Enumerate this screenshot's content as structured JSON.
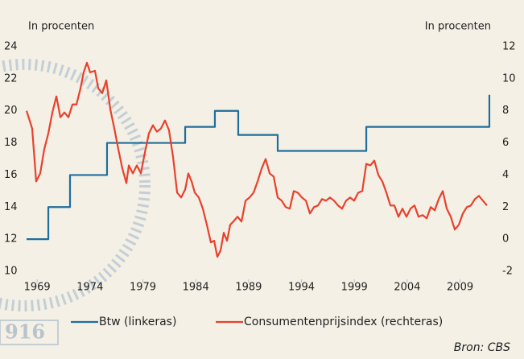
{
  "chart_data": {
    "type": "line",
    "y_label": "In procenten",
    "y2_label": "In procenten",
    "source": "Bron: CBS",
    "watermark": "916",
    "xlim": [
      1968,
      2012
    ],
    "xticks": [
      1969,
      1974,
      1979,
      1984,
      1989,
      1994,
      1999,
      2004,
      2009
    ],
    "ylim": [
      10,
      24
    ],
    "yticks": [
      10,
      12,
      14,
      16,
      18,
      20,
      22,
      24
    ],
    "y2lim": [
      -2,
      12
    ],
    "y2ticks": [
      -2,
      0,
      2,
      4,
      6,
      8,
      10,
      12
    ],
    "grid": false,
    "legend": "bottom",
    "series": [
      {
        "name": "Btw (linkeras)",
        "color": "#1f6e9c",
        "axis": "y",
        "x": [
          1968,
          1970.06,
          1970.06,
          1972.11,
          1972.11,
          1975.61,
          1975.61,
          1983,
          1983,
          1985.81,
          1985.81,
          1988.02,
          1988.02,
          1991.75,
          1991.75,
          2000.13,
          2000.13,
          2011.77,
          2011.77
        ],
        "values": [
          12,
          12,
          14,
          14,
          16,
          16,
          18,
          18,
          19,
          19,
          20,
          20,
          18.5,
          18.5,
          17.5,
          17.5,
          19,
          19,
          21
        ]
      },
      {
        "name": "Consumentenprijsindex (rechteras)",
        "color": "#e8412c",
        "axis": "y2",
        "x": [
          1968.0,
          1968.53,
          1968.91,
          1969.29,
          1969.67,
          1970.06,
          1970.44,
          1970.82,
          1971.2,
          1971.58,
          1971.96,
          1972.34,
          1972.72,
          1973.1,
          1973.4,
          1973.71,
          1974.01,
          1974.47,
          1974.78,
          1975.16,
          1975.54,
          1975.92,
          1976.3,
          1976.68,
          1977.06,
          1977.44,
          1977.67,
          1978.05,
          1978.43,
          1978.81,
          1979.19,
          1979.57,
          1979.95,
          1980.33,
          1980.71,
          1981.09,
          1981.47,
          1981.86,
          1982.24,
          1982.62,
          1983.0,
          1983.3,
          1983.61,
          1983.91,
          1984.29,
          1984.67,
          1985.05,
          1985.43,
          1985.74,
          1986.04,
          1986.35,
          1986.65,
          1986.96,
          1987.26,
          1987.56,
          1987.95,
          1988.33,
          1988.71,
          1989.09,
          1989.47,
          1989.85,
          1990.23,
          1990.61,
          1990.99,
          1991.37,
          1991.75,
          1992.13,
          1992.51,
          1992.89,
          1993.27,
          1993.65,
          1994.04,
          1994.42,
          1994.8,
          1995.18,
          1995.56,
          1995.94,
          1996.32,
          1996.7,
          1997.08,
          1997.46,
          1997.84,
          1998.22,
          1998.6,
          1998.98,
          1999.37,
          1999.75,
          2000.13,
          2000.51,
          2000.89,
          2001.27,
          2001.65,
          2002.03,
          2002.41,
          2002.79,
          2003.17,
          2003.55,
          2003.93,
          2004.31,
          2004.69,
          2005.07,
          2005.46,
          2005.84,
          2006.22,
          2006.6,
          2006.98,
          2007.36,
          2007.74,
          2008.12,
          2008.5,
          2008.88,
          2009.26,
          2009.64,
          2010.02,
          2010.4,
          2010.78,
          2011.16,
          2011.54
        ],
        "values": [
          8.0,
          6.9,
          3.6,
          4.1,
          5.6,
          6.6,
          7.9,
          8.9,
          7.6,
          7.9,
          7.6,
          8.4,
          8.4,
          9.4,
          10.4,
          11.0,
          10.4,
          10.5,
          9.4,
          9.1,
          9.9,
          8.1,
          6.9,
          5.6,
          4.4,
          3.5,
          4.6,
          4.1,
          4.6,
          4.1,
          5.4,
          6.6,
          7.1,
          6.7,
          6.9,
          7.4,
          6.8,
          5.1,
          2.9,
          2.6,
          3.1,
          4.1,
          3.6,
          2.9,
          2.6,
          1.9,
          0.9,
          -0.2,
          -0.1,
          -1.1,
          -0.7,
          0.4,
          -0.1,
          0.9,
          1.1,
          1.4,
          1.1,
          2.4,
          2.6,
          2.9,
          3.6,
          4.4,
          5.0,
          4.1,
          3.9,
          2.6,
          2.4,
          2.0,
          1.9,
          3.0,
          2.9,
          2.6,
          2.4,
          1.6,
          2.0,
          2.1,
          2.5,
          2.4,
          2.6,
          2.4,
          2.1,
          1.9,
          2.4,
          2.6,
          2.4,
          2.9,
          3.0,
          4.7,
          4.6,
          4.9,
          4.0,
          3.6,
          2.9,
          2.1,
          2.1,
          1.4,
          1.9,
          1.4,
          1.9,
          2.1,
          1.4,
          1.5,
          1.3,
          2.0,
          1.8,
          2.5,
          3.0,
          1.9,
          1.4,
          0.6,
          0.9,
          1.6,
          2.0,
          2.1,
          2.5,
          2.7,
          2.4,
          2.1
        ]
      }
    ]
  }
}
